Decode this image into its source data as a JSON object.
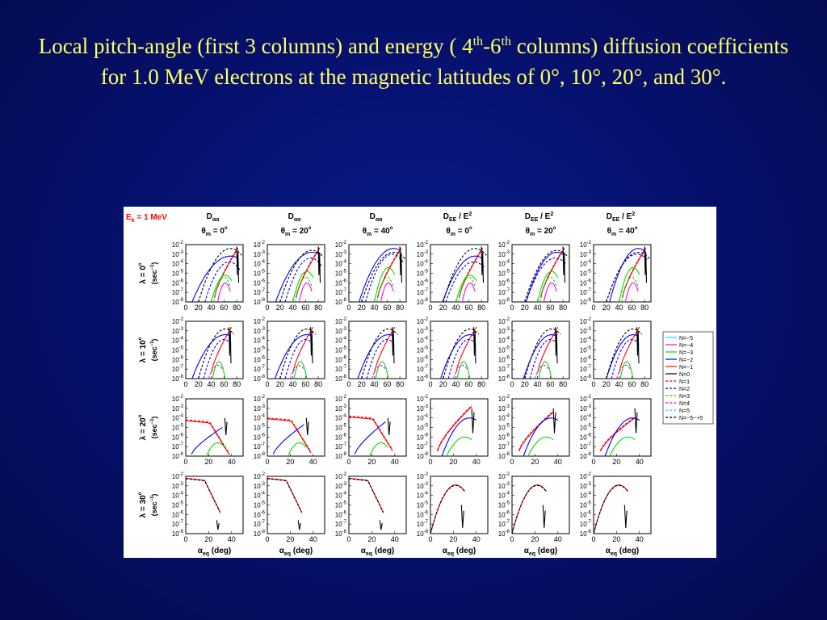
{
  "slide": {
    "title_part1": "Local pitch-angle (first 3 columns) and energy ( 4",
    "title_sup1": "th",
    "title_part2": "-6",
    "title_sup2": "th",
    "title_part3": " columns) diffusion coefficients for 1.0 MeV electrons at the magnetic latitudes of 0°, 10°, 20°, and 30°."
  },
  "colors": {
    "background": "#06106a",
    "title": "#ffff66",
    "energy_label": "#ff0000"
  },
  "chart_data": {
    "type": "line",
    "energy_label": {
      "prefix": "E",
      "sub": "k",
      "suffix": " = 1 MeV"
    },
    "columns": [
      {
        "quantity": "D",
        "quantity_sub": "αα",
        "theta": "θ",
        "theta_sub": "m",
        "theta_value": " = 0",
        "degree": "o"
      },
      {
        "quantity": "D",
        "quantity_sub": "αα",
        "theta": "θ",
        "theta_sub": "m",
        "theta_value": " = 20",
        "degree": "o"
      },
      {
        "quantity": "D",
        "quantity_sub": "αα",
        "theta": "θ",
        "theta_sub": "m",
        "theta_value": " = 40",
        "degree": "o"
      },
      {
        "quantity": "D",
        "quantity_sub": "EE",
        "quantity_suffix": " / E",
        "quantity_sup": "2",
        "theta": "θ",
        "theta_sub": "m",
        "theta_value": " = 0",
        "degree": "o"
      },
      {
        "quantity": "D",
        "quantity_sub": "EE",
        "quantity_suffix": " / E",
        "quantity_sup": "2",
        "theta": "θ",
        "theta_sub": "m",
        "theta_value": " = 20",
        "degree": "o"
      },
      {
        "quantity": "D",
        "quantity_sub": "EE",
        "quantity_suffix": " / E",
        "quantity_sup": "2",
        "theta": "θ",
        "theta_sub": "m",
        "theta_value": " = 40",
        "degree": "o"
      }
    ],
    "rows": [
      {
        "lambda": "λ = 0",
        "degree": "o",
        "unit": "(sec",
        "unit_sup": "−1",
        "unit_close": ")"
      },
      {
        "lambda": "λ = 10",
        "degree": "o",
        "unit": "(sec",
        "unit_sup": "−1",
        "unit_close": ")"
      },
      {
        "lambda": "λ = 20",
        "degree": "o",
        "unit": "(sec",
        "unit_sup": "−1",
        "unit_close": ")"
      },
      {
        "lambda": "λ = 30",
        "degree": "o",
        "unit": "(sec",
        "unit_sup": "−1",
        "unit_close": ")"
      }
    ],
    "y_ticks": {
      "base": "10",
      "exponents": [
        "-2",
        "-3",
        "-4",
        "-5",
        "-6",
        "-7",
        "-8"
      ]
    },
    "ylim_log10": [
      -8,
      -2
    ],
    "x_ticks_wide": [
      "0",
      "20",
      "40",
      "60",
      "80"
    ],
    "x_ticks_narrow": [
      "0",
      "20",
      "40"
    ],
    "xlim_wide": [
      0,
      90
    ],
    "xlim_narrow": [
      0,
      50
    ],
    "xlabel": {
      "symbol": "α",
      "sub": "eq",
      "text": "(deg)"
    },
    "legend": {
      "position": "right",
      "entries": [
        {
          "label": "N=−5",
          "color": "#00e5ff",
          "dash": false
        },
        {
          "label": "N=−4",
          "color": "#ff00ff",
          "dash": false
        },
        {
          "label": "N=−3",
          "color": "#00dd00",
          "dash": false
        },
        {
          "label": "N=−2",
          "color": "#0000ff",
          "dash": false
        },
        {
          "label": "N=−1",
          "color": "#ff0000",
          "dash": false
        },
        {
          "label": "N=0",
          "color": "#000000",
          "dash": false
        },
        {
          "label": "N=1",
          "color": "#ff0000",
          "dash": true
        },
        {
          "label": "N=2",
          "color": "#0000ff",
          "dash": true
        },
        {
          "label": "N=3",
          "color": "#00dd00",
          "dash": true
        },
        {
          "label": "N=4",
          "color": "#ff00ff",
          "dash": true
        },
        {
          "label": "N=5",
          "color": "#00e5ff",
          "dash": true
        },
        {
          "label": "N=−5~+5",
          "color": "#000000",
          "dash": true
        }
      ]
    }
  }
}
